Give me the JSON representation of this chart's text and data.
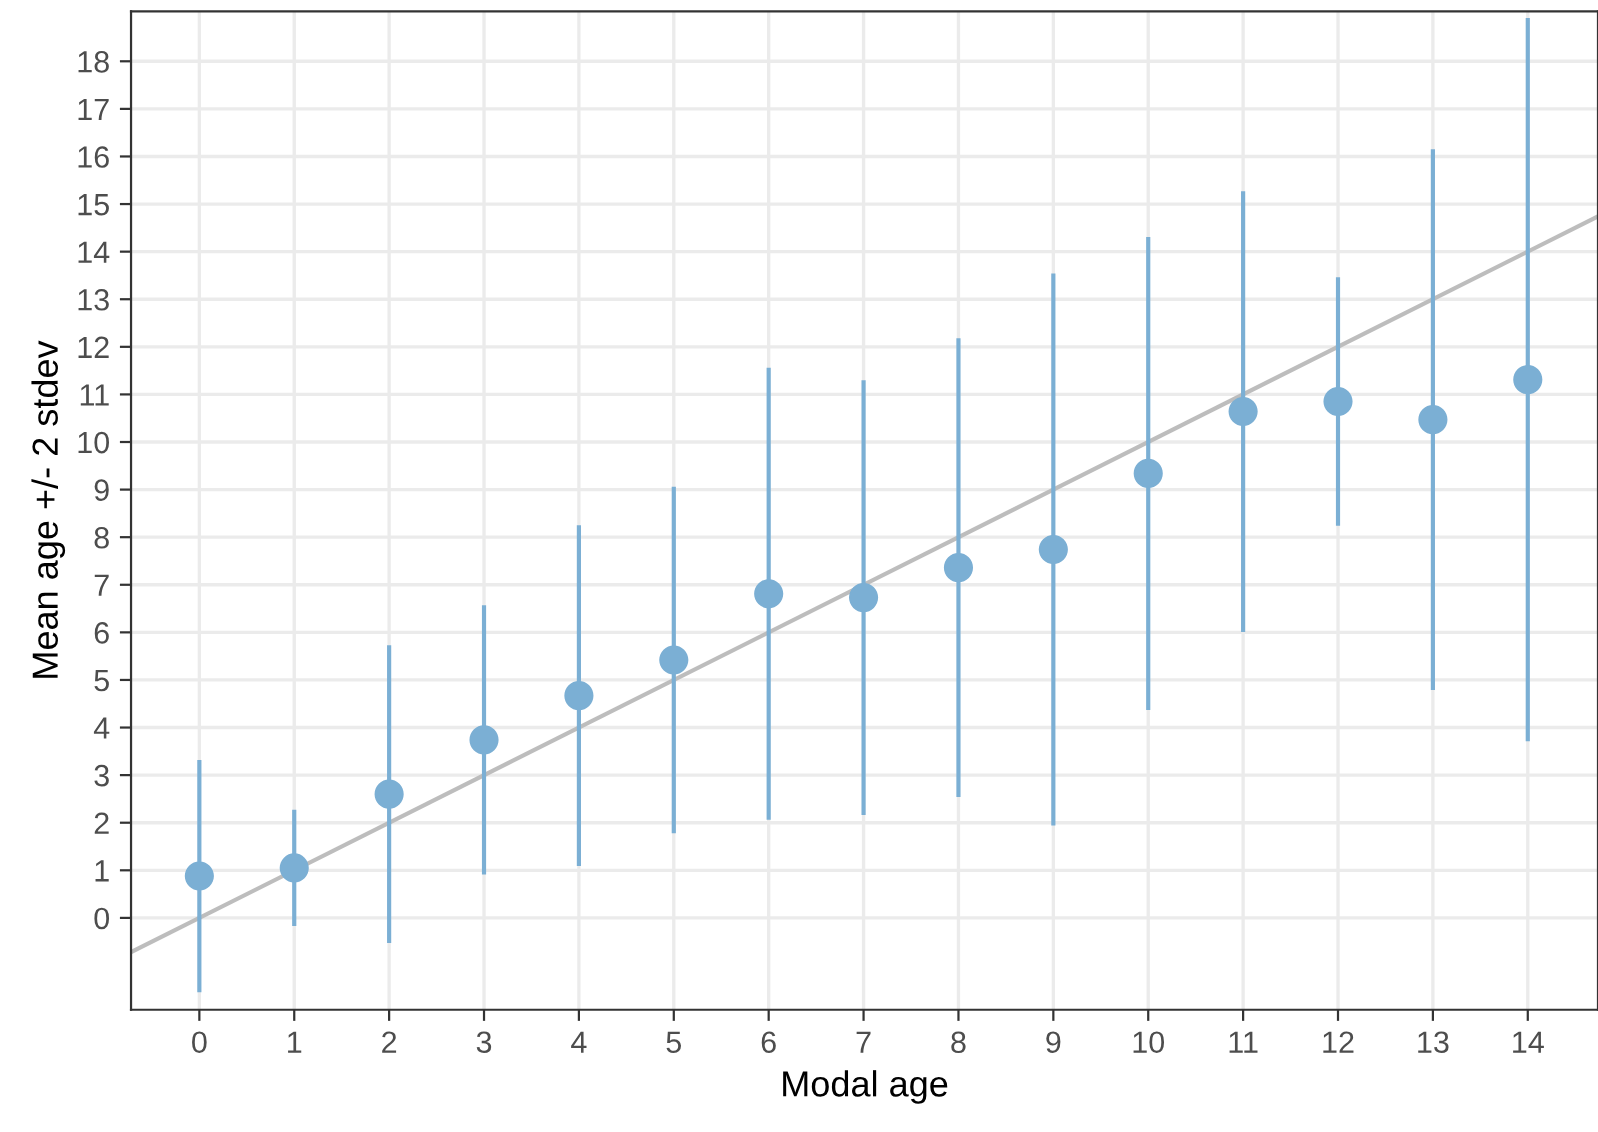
{
  "chart_data": {
    "type": "scatter",
    "xlabel": "Modal age",
    "ylabel": "Mean age +/- 2 stdev",
    "xlim": [
      -0.72,
      14.74
    ],
    "ylim": [
      -1.93,
      19.05
    ],
    "xticks": [
      0,
      1,
      2,
      3,
      4,
      5,
      6,
      7,
      8,
      9,
      10,
      11,
      12,
      13,
      14
    ],
    "yticks": [
      0,
      1,
      2,
      3,
      4,
      5,
      6,
      7,
      8,
      9,
      10,
      11,
      12,
      13,
      14,
      15,
      16,
      17,
      18
    ],
    "grid": true,
    "series": [
      {
        "type": "line",
        "color": "#bdbdbd",
        "x": [
          -0.72,
          14.74
        ],
        "values": [
          -0.72,
          14.74
        ]
      },
      {
        "color": "#7bafd4",
        "marker": "circle",
        "x": [
          0,
          1,
          2,
          3,
          4,
          5,
          6,
          7,
          8,
          9,
          10,
          11,
          12,
          13,
          14
        ],
        "values": [
          0.88,
          1.05,
          2.6,
          3.74,
          4.67,
          5.42,
          6.81,
          6.73,
          7.36,
          7.74,
          9.34,
          10.64,
          10.85,
          10.47,
          11.31
        ],
        "errors": [
          2.44,
          1.22,
          3.13,
          2.83,
          3.58,
          3.64,
          4.75,
          4.57,
          4.82,
          5.8,
          4.97,
          4.63,
          2.61,
          5.68,
          7.6
        ]
      }
    ]
  }
}
